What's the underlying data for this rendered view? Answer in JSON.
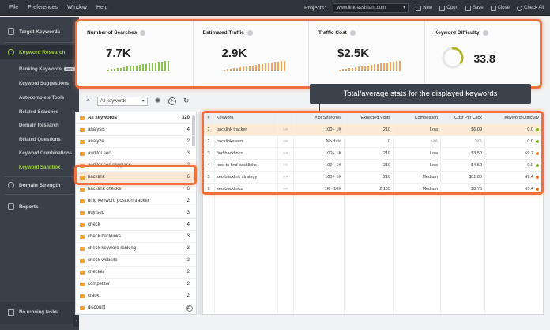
{
  "menu": [
    "File",
    "Preferences",
    "Window",
    "Help"
  ],
  "toolbar": {
    "projects_label": "Projects:",
    "project_value": "www.link-assistant.com",
    "new": "New",
    "open": "Open",
    "save": "Save",
    "close": "Close",
    "check_all": "Check All"
  },
  "sidebar": {
    "target_keywords": "Target Keywords",
    "keyword_research": "Keyword Research",
    "sub": [
      "Ranking Keywords",
      "Keyword Suggestions",
      "Autocomplete Tools",
      "Related Searches",
      "Domain Research",
      "Related Questions",
      "Keyword Combinations",
      "Keyword Sandbox"
    ],
    "beta": "BETA",
    "domain_strength": "Domain Strength",
    "reports": "Reports",
    "running": "No running tasks"
  },
  "stats": {
    "searches_label": "Number of Searches",
    "searches_value": "7.7K",
    "traffic_label": "Estimated Traffic",
    "traffic_value": "2.9K",
    "cost_label": "Traffic Cost",
    "cost_value": "$2.5K",
    "kd_label": "Keyword Difficulty",
    "kd_value": "33.8",
    "kd_fraction": 0.338
  },
  "filter": {
    "value": "All keywords"
  },
  "tooltip": "Total/average stats for the displayed keywords",
  "groups": {
    "header": {
      "name": "All keywords",
      "count": "320"
    },
    "items": [
      {
        "name": "analysis",
        "count": "4"
      },
      {
        "name": "analyze",
        "count": "2"
      },
      {
        "name": "auditor seo",
        "count": "3"
      },
      {
        "name": "auditor seo spyglass",
        "count": "2"
      },
      {
        "name": "backlink",
        "count": "6"
      },
      {
        "name": "backlink checker",
        "count": "6"
      },
      {
        "name": "bing keyword position tracker",
        "count": "2"
      },
      {
        "name": "buy seo",
        "count": "3"
      },
      {
        "name": "check",
        "count": "4"
      },
      {
        "name": "check backlinks",
        "count": "3"
      },
      {
        "name": "check keyword ranking",
        "count": "3"
      },
      {
        "name": "check website",
        "count": "2"
      },
      {
        "name": "checker",
        "count": "2"
      },
      {
        "name": "competitor",
        "count": "2"
      },
      {
        "name": "crack",
        "count": "2"
      },
      {
        "name": "discount",
        "count": "2"
      }
    ]
  },
  "table": {
    "headers": [
      "#",
      "Keyword",
      "# of Searches",
      "Expected Visits",
      "Competition",
      "Cost Per Click",
      "Keyword Difficulty"
    ],
    "rows": [
      {
        "n": "1",
        "kw": "backlink tracker",
        "searches": "100 - 1K",
        "visits": "210",
        "comp": "Low",
        "cpc": "$6.09",
        "kd": "0.0",
        "dot": "#7ab51d"
      },
      {
        "n": "2",
        "kw": "backlinks seo",
        "searches": "No data",
        "visits": "0",
        "comp": "N/A",
        "cpc": "N/A",
        "kd": "0.0",
        "dot": "#7ab51d"
      },
      {
        "n": "3",
        "kw": "find backlinks",
        "searches": "100 - 1K",
        "visits": "210",
        "comp": "Low",
        "cpc": "$3.50",
        "kd": "69.7",
        "dot": "#e8742d"
      },
      {
        "n": "4",
        "kw": "how to find backlinks",
        "searches": "100 - 1K",
        "visits": "210",
        "comp": "Low",
        "cpc": "$4.59",
        "kd": "0.0",
        "dot": "#7ab51d"
      },
      {
        "n": "5",
        "kw": "seo backlink strategy",
        "searches": "100 - 1K",
        "visits": "210",
        "comp": "Medium",
        "cpc": "$11.80",
        "kd": "67.4",
        "dot": "#e8742d"
      },
      {
        "n": "6",
        "kw": "seo backlinks",
        "searches": "1K - 10K",
        "visits": "2,103",
        "comp": "Medium",
        "cpc": "$3.75",
        "kd": "65.4",
        "dot": "#e8742d"
      }
    ]
  },
  "colors": {
    "accent_green": "#9ccc3d",
    "highlight_orange": "#f0703f",
    "bar_green": "#8bc34a",
    "bar_orange": "#f5a35a",
    "kd_ring": "#b5b52a"
  }
}
